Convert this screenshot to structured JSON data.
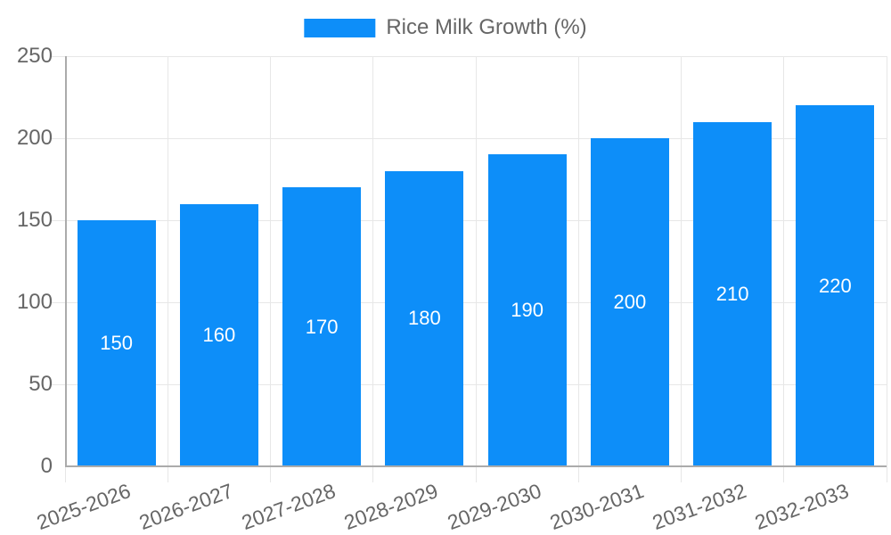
{
  "chart_data": {
    "type": "bar",
    "title": "Rice Milk Growth (%)",
    "categories": [
      "2025-2026",
      "2026-2027",
      "2027-2028",
      "2028-2029",
      "2029-2030",
      "2030-2031",
      "2031-2032",
      "2032-2033"
    ],
    "series": [
      {
        "name": "Rice Milk Growth (%)",
        "values": [
          150,
          160,
          170,
          180,
          190,
          200,
          210,
          220
        ]
      }
    ],
    "values": [
      150,
      160,
      170,
      180,
      190,
      200,
      210,
      220
    ],
    "bar_value_labels": [
      "150",
      "160",
      "170",
      "180",
      "190",
      "200",
      "210",
      "220"
    ],
    "xlabel": "",
    "ylabel": "",
    "ylim": [
      0,
      250
    ],
    "yticks": [
      0,
      50,
      100,
      150,
      200,
      250
    ],
    "grid": true,
    "legend_position": "top",
    "colors": {
      "bar": "#0d8ef9",
      "bar_label": "#ffffff",
      "axis_text": "#666666",
      "grid_line": "#e7e7e7",
      "axis_line": "#ababab",
      "background": "#ffffff"
    }
  },
  "legend": {
    "label": "Rice Milk Growth (%)",
    "swatch_color": "#0d8ef9"
  }
}
